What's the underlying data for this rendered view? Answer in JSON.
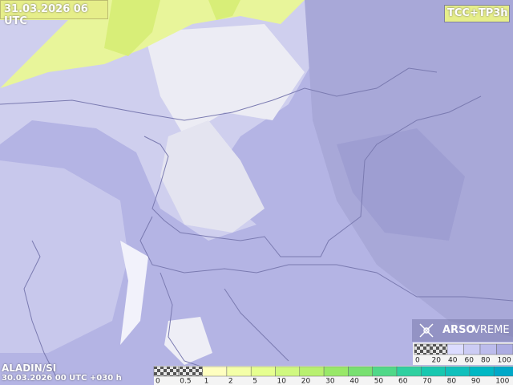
{
  "header": {
    "valid_time": "31.03.2026 06 UTC",
    "product": "TCC+TP3h"
  },
  "footer": {
    "model": "ALADIN/SI",
    "run": "30.03.2026 00 UTC +030 h",
    "brand_bold": "ARSO",
    "brand_light": "VREME"
  },
  "precip_legend": {
    "labels": [
      "0",
      "0.5",
      "1",
      "2",
      "5",
      "10",
      "20",
      "30",
      "40",
      "50",
      "60",
      "70",
      "80",
      "90",
      "100"
    ]
  },
  "cloud_legend": {
    "labels": [
      "0",
      "20",
      "40",
      "60",
      "80",
      "100"
    ]
  }
}
